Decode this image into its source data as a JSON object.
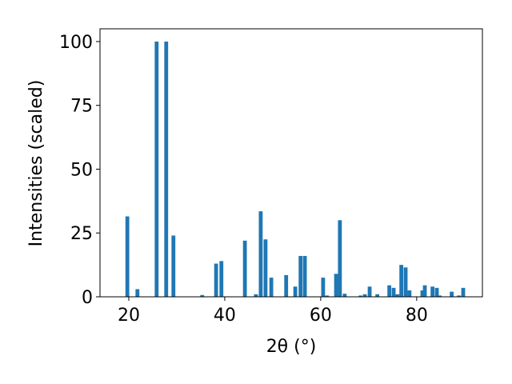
{
  "chart_data": {
    "type": "bar",
    "xlabel": "2θ (°)",
    "ylabel": "Intensities (scaled)",
    "x": [
      19.7,
      21.8,
      25.8,
      27.8,
      29.3,
      35.3,
      38.2,
      39.3,
      44.2,
      46.5,
      47.5,
      48.5,
      49.7,
      52.8,
      54.7,
      55.8,
      56.7,
      60.5,
      61.3,
      63.2,
      64.0,
      65.0,
      68.3,
      69.2,
      70.2,
      71.8,
      74.3,
      75.2,
      76.0,
      76.8,
      77.7,
      78.5,
      81.2,
      81.7,
      83.3,
      84.2,
      84.8,
      87.3,
      88.8,
      89.7
    ],
    "values": [
      31.5,
      3,
      100,
      100,
      24,
      0.7,
      13,
      14,
      22,
      1,
      33.5,
      22.5,
      7.5,
      8.5,
      4,
      16,
      16,
      7.5,
      0.5,
      9,
      30,
      1.2,
      0.5,
      1,
      4,
      1,
      4.5,
      3.5,
      1,
      12.5,
      11.5,
      2.5,
      2.5,
      4.5,
      4,
      3.5,
      0.5,
      2,
      0.5,
      3.5
    ],
    "bar_width": 0.8,
    "color": "#1f77b4",
    "xlim": [
      14,
      93.7
    ],
    "xticks": [
      20,
      40,
      60,
      80
    ],
    "ylim": [
      0,
      105
    ],
    "yticks": [
      0,
      25,
      50,
      75,
      100
    ]
  }
}
